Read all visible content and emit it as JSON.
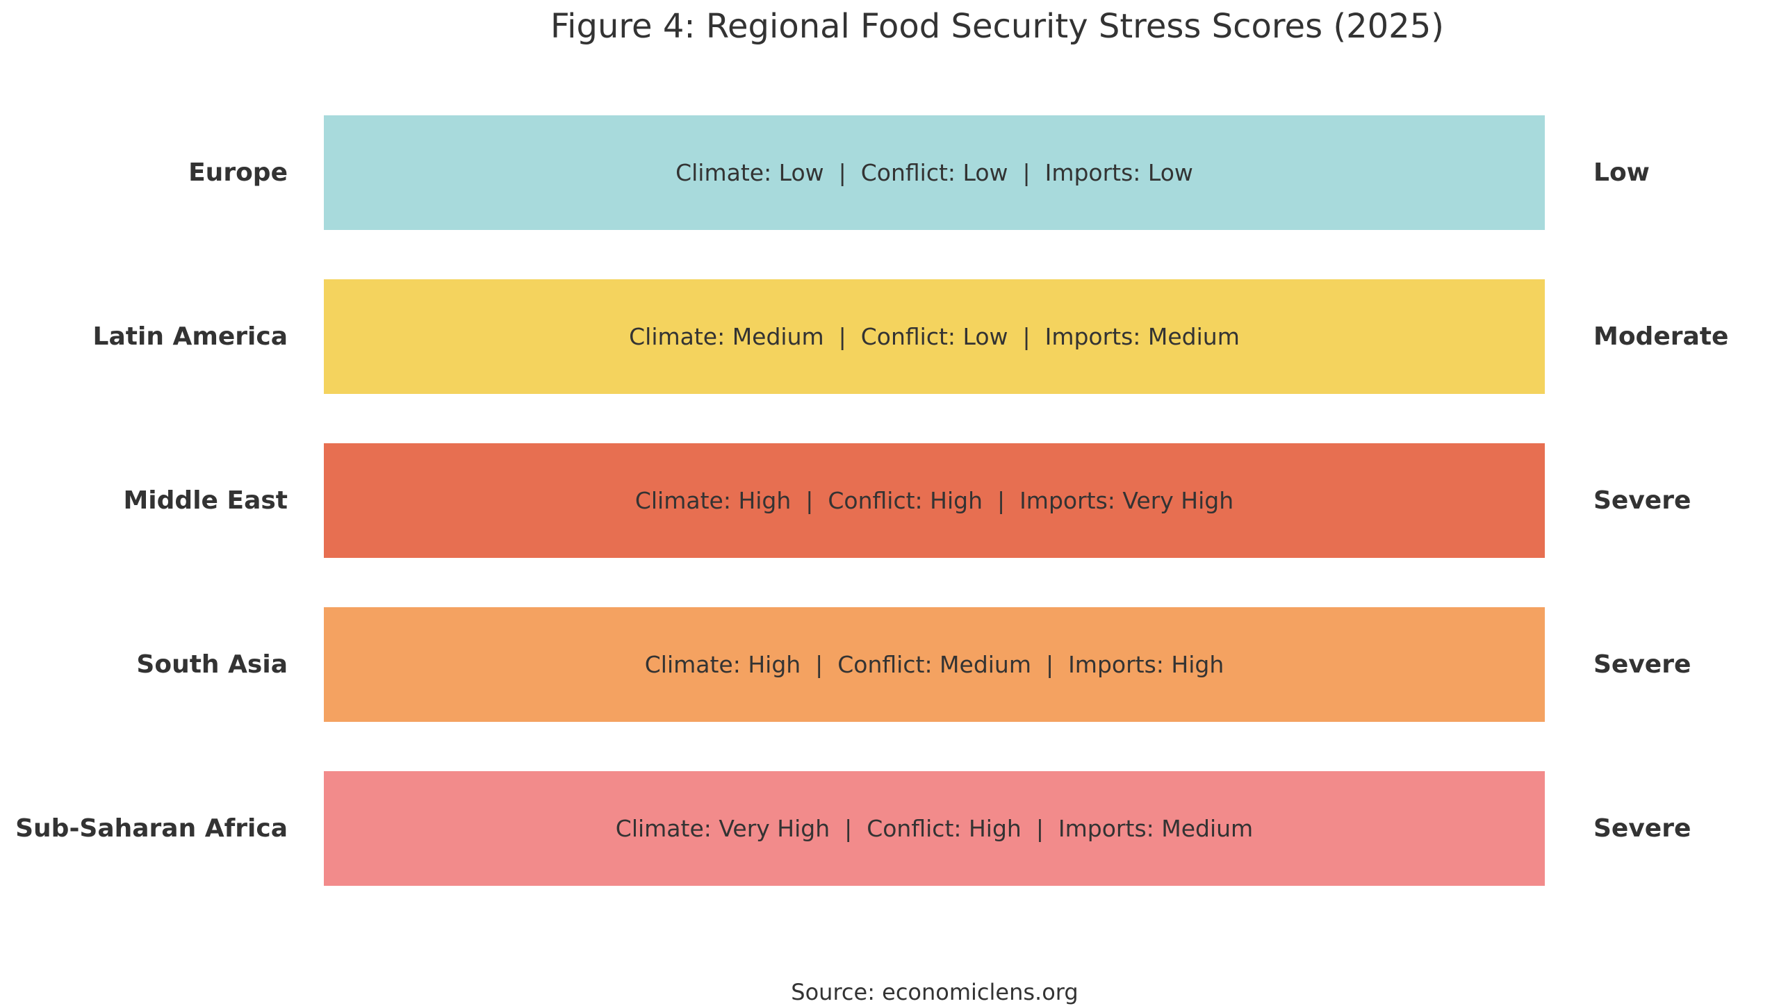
{
  "chart_data": {
    "type": "table",
    "title": "Figure 4: Regional Food Security Stress Scores (2025)",
    "rows": [
      {
        "region": "Europe",
        "detail": "Climate: Low  |  Conflict: Low  |  Imports: Low",
        "rating": "Low",
        "color": "#a8dadc"
      },
      {
        "region": "Latin America",
        "detail": "Climate: Medium  |  Conflict: Low  |  Imports: Medium",
        "rating": "Moderate",
        "color": "#f4d35e"
      },
      {
        "region": "Middle East",
        "detail": "Climate: High  |  Conflict: High  |  Imports: Very High",
        "rating": "Severe",
        "color": "#e76f51"
      },
      {
        "region": "South Asia",
        "detail": "Climate: High  |  Conflict: Medium  |  Imports: High",
        "rating": "Severe",
        "color": "#f4a261"
      },
      {
        "region": "Sub-Saharan Africa",
        "detail": "Climate: Very High  |  Conflict: High  |  Imports: Medium",
        "rating": "Severe",
        "color": "#f28b8b"
      }
    ],
    "source": "Source: economiclens.org"
  }
}
